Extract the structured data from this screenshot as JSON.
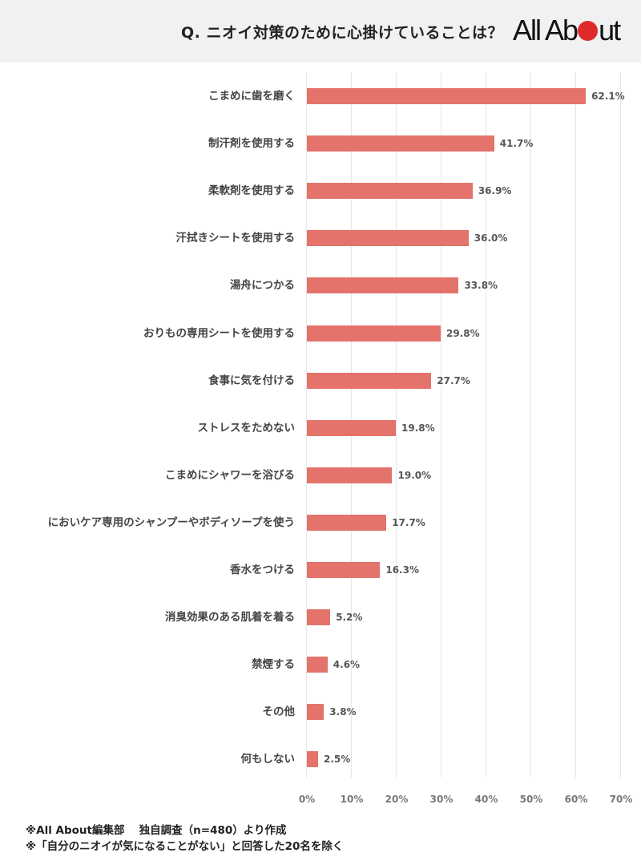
{
  "header": {
    "title": "Q. ニオイ対策のために心掛けていることは？",
    "logo": {
      "prefix": "All Ab",
      "suffix": "ut",
      "dot_color": "#e02a2a"
    }
  },
  "colors": {
    "bar": "#e3736b",
    "header_bg": "#f1f1f1",
    "grid": "#e6e6e6"
  },
  "chart_data": {
    "type": "bar",
    "orientation": "horizontal",
    "title": "Q. ニオイ対策のために心掛けていることは？",
    "xlabel": "",
    "ylabel": "",
    "xlim": [
      0,
      70
    ],
    "grid": true,
    "legend": null,
    "categories": [
      "こまめに歯を磨く",
      "制汗剤を使用する",
      "柔軟剤を使用する",
      "汗拭きシートを使用する",
      "湯舟につかる",
      "おりもの専用シートを使用する",
      "食事に気を付ける",
      "ストレスをためない",
      "こまめにシャワーを浴びる",
      "においケア専用のシャンプーやボディソープを使う",
      "香水をつける",
      "消臭効果のある肌着を着る",
      "禁煙する",
      "その他",
      "何もしない"
    ],
    "values": [
      62.1,
      41.7,
      36.9,
      36.0,
      33.8,
      29.8,
      27.7,
      19.8,
      19.0,
      17.7,
      16.3,
      5.2,
      4.6,
      3.8,
      2.5
    ],
    "value_labels": [
      "62.1%",
      "41.7%",
      "36.9%",
      "36.0%",
      "33.8%",
      "29.8%",
      "27.7%",
      "19.8%",
      "19.0%",
      "17.7%",
      "16.3%",
      "5.2%",
      "4.6%",
      "3.8%",
      "2.5%"
    ],
    "x_ticks": [
      "0%",
      "10%",
      "20%",
      "30%",
      "40%",
      "50%",
      "60%",
      "70%"
    ]
  },
  "notes": [
    "※All About編集部　 独自調査（n=480）より作成",
    "※「自分のニオイが気になることがない」と回答した20名を除く"
  ]
}
